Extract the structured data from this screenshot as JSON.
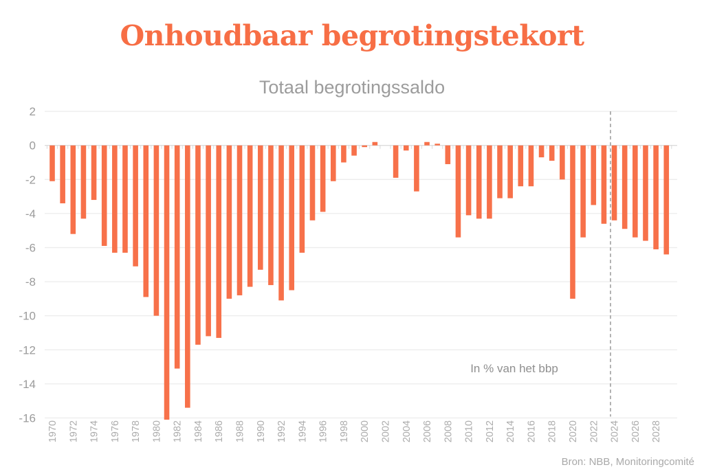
{
  "header": {
    "title": "Onhoudbaar begrotingstekort",
    "subtitle": "Totaal begrotingssaldo"
  },
  "chart_data": {
    "type": "bar",
    "title": "Totaal begrotingssaldo",
    "unit_annotation": "In % van het bbp",
    "xlabel": "",
    "ylabel": "",
    "ylim": [
      -16,
      2
    ],
    "ytick_step": 2,
    "xtick_step": 2,
    "grid": true,
    "projection_divider_between": [
      2023,
      2024
    ],
    "x": [
      1970,
      1971,
      1972,
      1973,
      1974,
      1975,
      1976,
      1977,
      1978,
      1979,
      1980,
      1981,
      1982,
      1983,
      1984,
      1985,
      1986,
      1987,
      1988,
      1989,
      1990,
      1991,
      1992,
      1993,
      1994,
      1995,
      1996,
      1997,
      1998,
      1999,
      2000,
      2001,
      2002,
      2003,
      2004,
      2005,
      2006,
      2007,
      2008,
      2009,
      2010,
      2011,
      2012,
      2013,
      2014,
      2015,
      2016,
      2017,
      2018,
      2019,
      2020,
      2021,
      2022,
      2023,
      2024,
      2025,
      2026,
      2027,
      2028,
      2029
    ],
    "values": [
      -2.1,
      -3.4,
      -5.2,
      -4.3,
      -3.2,
      -5.9,
      -6.3,
      -6.3,
      -7.1,
      -8.9,
      -10.0,
      -16.1,
      -13.1,
      -15.4,
      -11.7,
      -11.2,
      -11.3,
      -9.0,
      -8.8,
      -8.3,
      -7.3,
      -8.2,
      -9.1,
      -8.5,
      -6.3,
      -4.4,
      -3.9,
      -2.1,
      -1.0,
      -0.6,
      -0.1,
      0.2,
      0.0,
      -1.9,
      -0.3,
      -2.7,
      0.2,
      0.1,
      -1.1,
      -5.4,
      -4.1,
      -4.3,
      -4.3,
      -3.1,
      -3.1,
      -2.4,
      -2.4,
      -0.7,
      -0.9,
      -2.0,
      -9.0,
      -5.4,
      -3.5,
      -4.6,
      -4.4,
      -4.9,
      -5.4,
      -5.6,
      -6.1,
      -6.4
    ],
    "colors": {
      "bar": "#f7714a",
      "title": "#f76e45",
      "grid": "#ececec",
      "zero_line": "#dcdcdc",
      "tick": "#d9d9d9",
      "yaxis_text": "#9b9b9b",
      "xaxis_text": "#acacac",
      "divider": "#7f7f7f",
      "annotation_text": "#8f8f8f",
      "source_text": "#a9a9a9"
    }
  },
  "footer": {
    "source": "Bron: NBB, Monitoringcomité"
  }
}
